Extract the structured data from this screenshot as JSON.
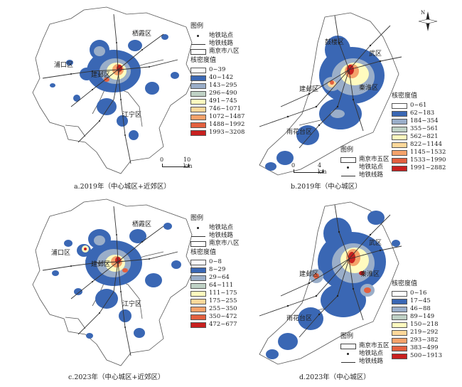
{
  "colors": {
    "ramp": [
      "#ffffff",
      "#3a67b4",
      "#9aaec9",
      "#bfd1c5",
      "#fffbbf",
      "#fdd89a",
      "#f5a26a",
      "#e3603f",
      "#c8201f"
    ],
    "boundary": "#555555",
    "metro": "#333333"
  },
  "panels": [
    {
      "id": "a",
      "caption": "a.2019年（中心城区+近郊区）",
      "legend": {
        "title": "图例",
        "station": "地铁站点",
        "line": "地铁线路",
        "boundary": "南京市八区",
        "density_title": "核密度值",
        "classes": [
          "0~39",
          "40~142",
          "143~295",
          "296~490",
          "491~745",
          "746~1071",
          "1072~1487",
          "1488~1992",
          "1993~3208"
        ]
      },
      "districts": [
        "栖霞区",
        "浦口区",
        "建邺区",
        "江宁区"
      ],
      "scale": {
        "zero": "0",
        "max": "10 km"
      }
    },
    {
      "id": "b",
      "caption": "b.2019年（中心城区）",
      "legend": {
        "title": "图例",
        "station": "地铁站点",
        "line": "地铁线路",
        "boundary": "南京市五区",
        "density_title": "核密度值",
        "classes": [
          "0~61",
          "62~183",
          "184~354",
          "355~561",
          "562~821",
          "822~1144",
          "1145~1532",
          "1533~1990",
          "1991~2882"
        ]
      },
      "districts": [
        "鼓楼区",
        "武区",
        "建邺区",
        "秦淮区",
        "雨花台区"
      ],
      "scale": {
        "zero": "0",
        "max": "4 km"
      },
      "north": "N"
    },
    {
      "id": "c",
      "caption": "c.2023年（中心城区+近郊区）",
      "legend": {
        "title": "图例",
        "station": "地铁站点",
        "line": "地铁线路",
        "boundary": "南京市八区",
        "density_title": "核密度值",
        "classes": [
          "0~8",
          "8~29",
          "29~64",
          "64~111",
          "111~175",
          "175~255",
          "255~350",
          "350~472",
          "472~677"
        ]
      },
      "districts": [
        "栖霞区",
        "浦口区",
        "建邺区",
        "江宁区"
      ]
    },
    {
      "id": "d",
      "caption": "d.2023年（中心城区）",
      "legend": {
        "title": "图例",
        "station": "地铁站点",
        "line": "地铁线路",
        "boundary": "南京市五区",
        "density_title": "核密度值",
        "classes": [
          "0~16",
          "17~45",
          "46~88",
          "89~149",
          "150~218",
          "219~292",
          "293~382",
          "383~499",
          "500~1913"
        ]
      },
      "districts": [
        "武区",
        "建邺区",
        "秦淮区",
        "雨花台区"
      ]
    }
  ]
}
